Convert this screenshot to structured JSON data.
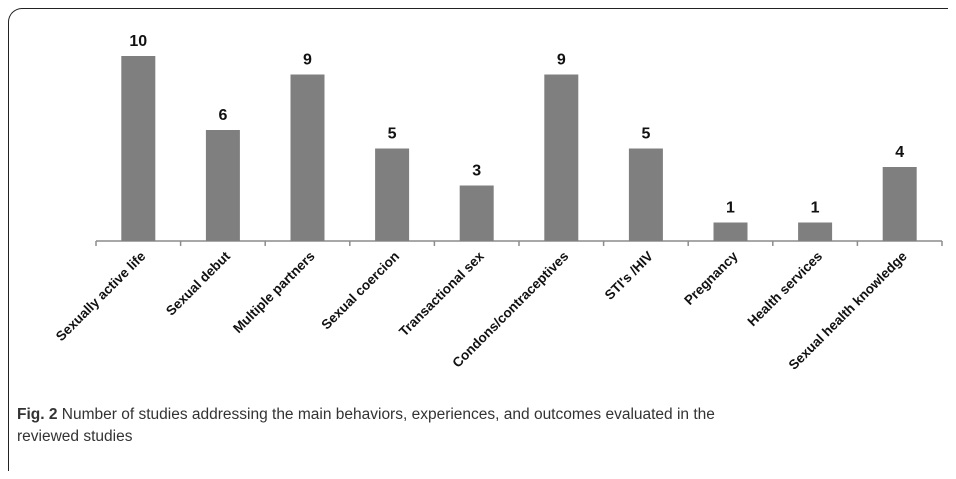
{
  "chart_data": {
    "type": "bar",
    "categories": [
      "Sexually active life",
      "Sexual debut",
      "Multiple partners",
      "Sexual coercion",
      "Transactional sex",
      "Condons/contraceptives",
      "STI's /HIV",
      "Pregnancy",
      "Health services",
      "Sexual health knowledge"
    ],
    "values": [
      10,
      6,
      9,
      5,
      3,
      9,
      5,
      1,
      1,
      4
    ],
    "data_labels": [
      "10",
      "6",
      "9",
      "5",
      "3",
      "9",
      "5",
      "1",
      "1",
      "4"
    ],
    "ylim": [
      0,
      10
    ],
    "grid": false,
    "legend": "none",
    "bar_color": "#7f7f7f",
    "axis_color": "#8c8c8c"
  },
  "caption": {
    "label": "Fig. 2",
    "text": " Number of studies addressing the main behaviors, experiences, and outcomes evaluated in the reviewed studies"
  }
}
